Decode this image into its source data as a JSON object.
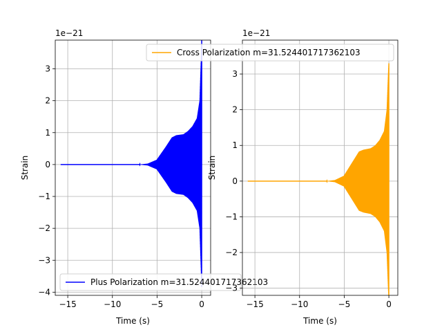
{
  "chart_data": [
    {
      "type": "line",
      "id": "plus",
      "title": "",
      "xlabel": "Time (s)",
      "ylabel": "Strain",
      "xlim": [
        -16.4,
        1.0
      ],
      "ylim": [
        -4.1,
        3.9
      ],
      "x_ticks": [
        -15,
        -10,
        -5,
        0
      ],
      "x_tick_labels": [
        "−15",
        "−10",
        "−5",
        "0"
      ],
      "y_ticks": [
        -4,
        -3,
        -2,
        -1,
        0,
        1,
        2,
        3
      ],
      "y_tick_labels": [
        "−4",
        "−3",
        "−2",
        "−1",
        "0",
        "1",
        "2",
        "3"
      ],
      "offset_text": "1e−21",
      "grid": true,
      "legend": {
        "placement": "lower-left",
        "label": "Plus Polarization m=31.524401717362103"
      },
      "series": [
        {
          "name": "Plus Polarization m=31.524401717362103",
          "color": "#0000ff",
          "envelope": {
            "t_start": -15.8,
            "t_merger": 0.0,
            "points": [
              {
                "t": -15.8,
                "amp": 0.0
              },
              {
                "t": -7.0,
                "amp": 0.0
              },
              {
                "t": -6.0,
                "amp": 0.03
              },
              {
                "t": -5.0,
                "amp": 0.15
              },
              {
                "t": -4.0,
                "amp": 0.55
              },
              {
                "t": -3.3,
                "amp": 0.85
              },
              {
                "t": -2.8,
                "amp": 0.92
              },
              {
                "t": -2.0,
                "amp": 0.95
              },
              {
                "t": -1.5,
                "amp": 1.05
              },
              {
                "t": -1.0,
                "amp": 1.2
              },
              {
                "t": -0.5,
                "amp": 1.45
              },
              {
                "t": -0.2,
                "amp": 2.0
              },
              {
                "t": -0.05,
                "amp": 3.3
              },
              {
                "t": 0.0,
                "amp": 3.9
              }
            ]
          }
        }
      ]
    },
    {
      "type": "line",
      "id": "cross",
      "title": "",
      "xlabel": "Time (s)",
      "ylabel": "Strain",
      "xlim": [
        -16.4,
        1.0
      ],
      "ylim": [
        -3.2,
        3.95
      ],
      "x_ticks": [
        -15,
        -10,
        -5,
        0
      ],
      "x_tick_labels": [
        "−15",
        "−10",
        "−5",
        "0"
      ],
      "y_ticks": [
        -3,
        -2,
        -1,
        0,
        1,
        2,
        3
      ],
      "y_tick_labels": [
        "−3",
        "−2",
        "−1",
        "0",
        "1",
        "2",
        "3"
      ],
      "offset_text": "1e−21",
      "grid": true,
      "legend": {
        "placement": "upper-right",
        "label": "Cross Polarization m=31.524401717362103"
      },
      "series": [
        {
          "name": "Cross Polarization m=31.524401717362103",
          "color": "#ffa500",
          "envelope": {
            "t_start": -15.8,
            "t_merger": 0.0,
            "points": [
              {
                "t": -15.8,
                "amp": 0.0
              },
              {
                "t": -7.0,
                "amp": 0.0
              },
              {
                "t": -6.0,
                "amp": 0.03
              },
              {
                "t": -5.0,
                "amp": 0.15
              },
              {
                "t": -4.0,
                "amp": 0.55
              },
              {
                "t": -3.3,
                "amp": 0.83
              },
              {
                "t": -2.8,
                "amp": 0.88
              },
              {
                "t": -2.0,
                "amp": 0.92
              },
              {
                "t": -1.5,
                "amp": 1.0
              },
              {
                "t": -1.0,
                "amp": 1.15
              },
              {
                "t": -0.5,
                "amp": 1.4
              },
              {
                "t": -0.2,
                "amp": 2.0
              },
              {
                "t": -0.05,
                "amp": 3.0
              },
              {
                "t": 0.0,
                "amp": 3.3
              }
            ]
          }
        }
      ]
    }
  ]
}
